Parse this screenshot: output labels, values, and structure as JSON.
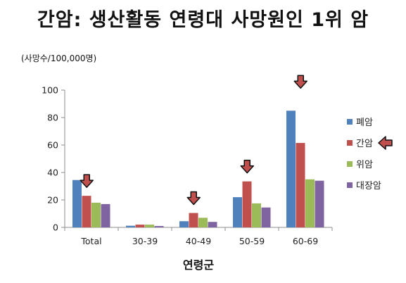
{
  "title": "간암: 생산활동 연령대 사망원인 1위 암",
  "chart_data": {
    "type": "bar",
    "unit_label": "(사망수/100,000명)",
    "xlabel": "연령군",
    "ylabel": "",
    "ylim": [
      0,
      100
    ],
    "yticks": [
      0,
      20,
      40,
      60,
      80,
      100
    ],
    "categories": [
      "Total",
      "30-39",
      "40-49",
      "50-59",
      "60-69"
    ],
    "series": [
      {
        "name": "폐암",
        "color": "#4F81BD",
        "values": [
          34.5,
          1.2,
          4.5,
          22,
          85
        ]
      },
      {
        "name": "간암",
        "color": "#C0504D",
        "values": [
          23,
          2,
          10.5,
          33.5,
          61.5
        ]
      },
      {
        "name": "위암",
        "color": "#9BBB59",
        "values": [
          18,
          2,
          7,
          17.5,
          35
        ]
      },
      {
        "name": "대장암",
        "color": "#8064A2",
        "values": [
          17,
          1,
          4,
          14.5,
          34
        ]
      }
    ],
    "grid": false,
    "legend_position": "right",
    "highlight": {
      "series": "간암",
      "categories": [
        "Total",
        "40-49",
        "50-59",
        "60-69"
      ],
      "marker": "arrow-down-icon",
      "marker_color": "#C0504D",
      "legend_marker": "arrow-left-icon"
    }
  }
}
